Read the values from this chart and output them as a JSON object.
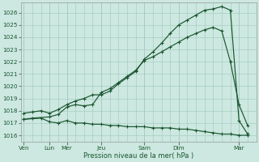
{
  "xlabel": "Pression niveau de la mer( hPa )",
  "bg_color": "#cce8e0",
  "grid_color": "#a0c8bc",
  "line_color": "#1a5530",
  "ylim": [
    1015.5,
    1026.8
  ],
  "yticks": [
    1016,
    1017,
    1018,
    1019,
    1020,
    1021,
    1022,
    1023,
    1024,
    1025,
    1026
  ],
  "day_labels": [
    "Ven",
    "Lun",
    "Mer",
    "Jeu",
    "Sam",
    "Dim",
    "Mar"
  ],
  "day_x": [
    0,
    3,
    5,
    9,
    14,
    18,
    25
  ],
  "xlim": [
    -0.3,
    27
  ],
  "line1_x": [
    0,
    1,
    3,
    4,
    5,
    6,
    7,
    8,
    9,
    10,
    11,
    12,
    13,
    14,
    15,
    16,
    17,
    18,
    19,
    20,
    21,
    22,
    23,
    24,
    25,
    26
  ],
  "line1_y": [
    1017.3,
    1017.4,
    1017.5,
    1017.7,
    1018.3,
    1018.5,
    1018.4,
    1018.5,
    1019.5,
    1019.8,
    1020.3,
    1020.8,
    1021.3,
    1022.1,
    1022.4,
    1022.8,
    1023.2,
    1023.6,
    1024.0,
    1024.3,
    1024.6,
    1024.8,
    1024.5,
    1022.0,
    1018.5,
    1016.8
  ],
  "line2_x": [
    0,
    1,
    2,
    3,
    4,
    5,
    6,
    7,
    8,
    9,
    10,
    11,
    12,
    13,
    14,
    15,
    16,
    17,
    18,
    19,
    20,
    21,
    22,
    23,
    24,
    25,
    26
  ],
  "line2_y": [
    1017.8,
    1017.9,
    1018.0,
    1017.8,
    1018.1,
    1018.5,
    1018.8,
    1019.0,
    1019.3,
    1019.3,
    1019.6,
    1020.2,
    1020.7,
    1021.2,
    1022.2,
    1022.8,
    1023.5,
    1024.3,
    1025.0,
    1025.4,
    1025.8,
    1026.2,
    1026.3,
    1026.5,
    1026.2,
    1017.2,
    1016.1
  ],
  "line3_x": [
    0,
    2,
    3,
    4,
    5,
    6,
    7,
    8,
    9,
    10,
    11,
    12,
    13,
    14,
    15,
    16,
    17,
    18,
    19,
    20,
    21,
    22,
    23,
    24,
    25,
    26
  ],
  "line3_y": [
    1017.3,
    1017.4,
    1017.1,
    1017.0,
    1017.2,
    1017.0,
    1017.0,
    1016.9,
    1016.9,
    1016.8,
    1016.8,
    1016.7,
    1016.7,
    1016.7,
    1016.6,
    1016.6,
    1016.6,
    1016.5,
    1016.5,
    1016.4,
    1016.3,
    1016.2,
    1016.1,
    1016.1,
    1016.0,
    1016.0
  ]
}
